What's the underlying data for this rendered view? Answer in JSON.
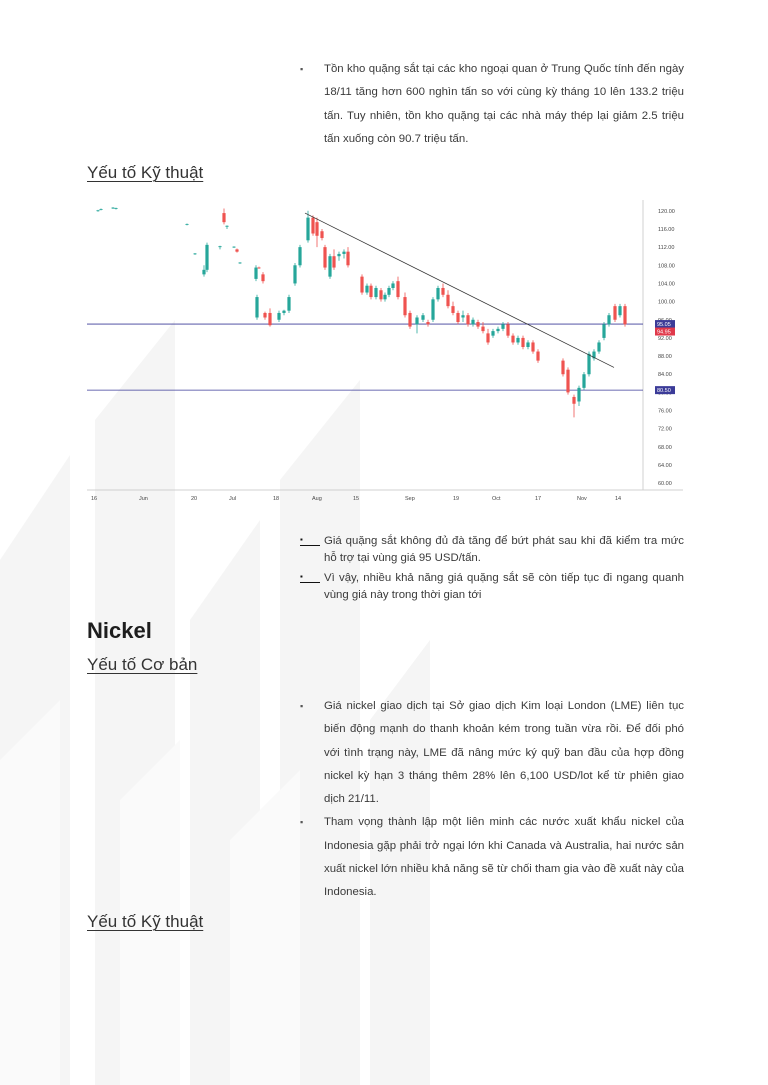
{
  "section1": {
    "bullets": [
      "Tồn kho quặng sắt tại các kho ngoại quan ở Trung Quốc tính đến ngày 18/11 tăng hơn 600 nghìn tấn so với cùng kỳ tháng 10 lên 133.2 triệu tấn. Tuy nhiên, tồn kho quặng tại các nhà máy thép lại giảm 2.5 triệu tấn xuống còn 90.7 triệu tấn."
    ],
    "technical_heading": "Yếu tố Kỹ thuật"
  },
  "chart_data": {
    "type": "candlestick",
    "x_tick_labels": [
      "16",
      "Jun",
      "20",
      "Jul",
      "18",
      "Aug",
      "15",
      "Sep",
      "19",
      "Oct",
      "17",
      "Nov",
      "14"
    ],
    "y_tick_labels": [
      "120.00",
      "116.00",
      "112.00",
      "108.00",
      "104.00",
      "100.00",
      "96.00",
      "92.00",
      "88.00",
      "84.00",
      "80.00",
      "76.00",
      "72.00",
      "68.00",
      "64.00",
      "60.00"
    ],
    "ylim": [
      58.5,
      121.5
    ],
    "horizontal_lines": [
      {
        "value": 95.05,
        "label": "95.05",
        "color": "#3b3b98"
      },
      {
        "value": 80.5,
        "label": "80.50",
        "color": "#3b3b98"
      }
    ],
    "current_price": {
      "value": 94.95,
      "label": "94.95",
      "color": "#e0394b"
    },
    "trendline": {
      "from_value": 119.5,
      "to_value": 85.5,
      "color": "#333333"
    },
    "colors": {
      "up": "#26a69a",
      "down": "#ef5350"
    },
    "candles": [
      {
        "o": 120.0,
        "h": 120.2,
        "l": 119.8,
        "c": 120.1
      },
      {
        "o": 120.3,
        "h": 120.5,
        "l": 120.1,
        "c": 120.4
      },
      {
        "o": 120.6,
        "h": 120.8,
        "l": 120.4,
        "c": 120.7
      },
      {
        "o": 120.5,
        "h": 120.7,
        "l": 120.3,
        "c": 120.6
      },
      {
        "o": 117.0,
        "h": 117.2,
        "l": 116.8,
        "c": 117.1
      },
      {
        "o": 110.5,
        "h": 110.7,
        "l": 110.3,
        "c": 110.6
      },
      {
        "o": 106.0,
        "h": 108.0,
        "l": 105.5,
        "c": 107.0
      },
      {
        "o": 107.0,
        "h": 113.0,
        "l": 106.5,
        "c": 112.5
      },
      {
        "o": 112.0,
        "h": 112.3,
        "l": 111.5,
        "c": 112.2
      },
      {
        "o": 116.5,
        "h": 116.8,
        "l": 116.0,
        "c": 116.7
      },
      {
        "o": 119.5,
        "h": 120.5,
        "l": 117.0,
        "c": 117.5
      },
      {
        "o": 112.0,
        "h": 112.2,
        "l": 111.8,
        "c": 112.1
      },
      {
        "o": 111.5,
        "h": 111.7,
        "l": 110.8,
        "c": 111.0
      },
      {
        "o": 108.5,
        "h": 108.7,
        "l": 108.3,
        "c": 108.6
      },
      {
        "o": 105.0,
        "h": 108.0,
        "l": 104.5,
        "c": 107.5
      },
      {
        "o": 107.5,
        "h": 107.7,
        "l": 107.2,
        "c": 107.4
      },
      {
        "o": 106.0,
        "h": 106.5,
        "l": 104.0,
        "c": 104.5
      },
      {
        "o": 96.5,
        "h": 101.5,
        "l": 96.0,
        "c": 101.0
      },
      {
        "o": 97.5,
        "h": 97.8,
        "l": 96.0,
        "c": 96.5
      },
      {
        "o": 97.5,
        "h": 98.5,
        "l": 94.5,
        "c": 94.8
      },
      {
        "o": 96.0,
        "h": 98.0,
        "l": 95.5,
        "c": 97.5
      },
      {
        "o": 97.5,
        "h": 98.2,
        "l": 97.0,
        "c": 98.0
      },
      {
        "o": 98.0,
        "h": 101.5,
        "l": 97.5,
        "c": 101.0
      },
      {
        "o": 104.0,
        "h": 108.5,
        "l": 103.5,
        "c": 108.0
      },
      {
        "o": 108.0,
        "h": 112.5,
        "l": 107.5,
        "c": 112.0
      },
      {
        "o": 113.5,
        "h": 120.0,
        "l": 113.0,
        "c": 118.5
      },
      {
        "o": 118.5,
        "h": 119.0,
        "l": 114.5,
        "c": 115.0
      },
      {
        "o": 117.5,
        "h": 118.5,
        "l": 112.0,
        "c": 114.5
      },
      {
        "o": 115.5,
        "h": 116.0,
        "l": 113.5,
        "c": 114.0
      },
      {
        "o": 112.0,
        "h": 112.5,
        "l": 107.0,
        "c": 107.5
      },
      {
        "o": 105.5,
        "h": 110.5,
        "l": 105.0,
        "c": 110.0
      },
      {
        "o": 110.0,
        "h": 111.5,
        "l": 107.0,
        "c": 107.5
      },
      {
        "o": 110.0,
        "h": 111.0,
        "l": 109.0,
        "c": 110.5
      },
      {
        "o": 110.5,
        "h": 111.5,
        "l": 109.5,
        "c": 111.0
      },
      {
        "o": 111.0,
        "h": 112.0,
        "l": 107.5,
        "c": 108.0
      },
      {
        "o": 105.5,
        "h": 106.0,
        "l": 101.5,
        "c": 102.0
      },
      {
        "o": 102.0,
        "h": 104.0,
        "l": 101.5,
        "c": 103.5
      },
      {
        "o": 103.5,
        "h": 104.0,
        "l": 100.5,
        "c": 101.0
      },
      {
        "o": 101.0,
        "h": 103.5,
        "l": 100.5,
        "c": 103.0
      },
      {
        "o": 102.5,
        "h": 103.0,
        "l": 100.0,
        "c": 100.5
      },
      {
        "o": 100.5,
        "h": 102.0,
        "l": 100.0,
        "c": 101.5
      },
      {
        "o": 101.5,
        "h": 103.5,
        "l": 101.0,
        "c": 103.0
      },
      {
        "o": 103.0,
        "h": 104.5,
        "l": 102.5,
        "c": 104.0
      },
      {
        "o": 104.5,
        "h": 105.5,
        "l": 100.5,
        "c": 101.0
      },
      {
        "o": 101.0,
        "h": 102.0,
        "l": 96.5,
        "c": 97.0
      },
      {
        "o": 97.5,
        "h": 98.0,
        "l": 94.0,
        "c": 94.5
      },
      {
        "o": 95.0,
        "h": 97.0,
        "l": 93.0,
        "c": 96.5
      },
      {
        "o": 96.0,
        "h": 97.5,
        "l": 95.5,
        "c": 97.0
      },
      {
        "o": 95.5,
        "h": 96.0,
        "l": 94.5,
        "c": 95.0
      },
      {
        "o": 96.0,
        "h": 101.0,
        "l": 95.5,
        "c": 100.5
      },
      {
        "o": 100.5,
        "h": 103.5,
        "l": 100.0,
        "c": 103.0
      },
      {
        "o": 103.0,
        "h": 104.0,
        "l": 101.0,
        "c": 101.5
      },
      {
        "o": 101.5,
        "h": 102.5,
        "l": 98.5,
        "c": 99.0
      },
      {
        "o": 99.0,
        "h": 100.0,
        "l": 97.0,
        "c": 97.5
      },
      {
        "o": 97.5,
        "h": 98.0,
        "l": 95.0,
        "c": 95.5
      },
      {
        "o": 96.5,
        "h": 98.0,
        "l": 95.5,
        "c": 97.0
      },
      {
        "o": 97.0,
        "h": 97.5,
        "l": 94.5,
        "c": 95.0
      },
      {
        "o": 95.0,
        "h": 96.5,
        "l": 94.5,
        "c": 96.0
      },
      {
        "o": 95.5,
        "h": 96.0,
        "l": 94.0,
        "c": 94.5
      },
      {
        "o": 94.5,
        "h": 95.5,
        "l": 93.0,
        "c": 93.5
      },
      {
        "o": 93.0,
        "h": 94.0,
        "l": 90.5,
        "c": 91.0
      },
      {
        "o": 92.5,
        "h": 94.0,
        "l": 92.0,
        "c": 93.5
      },
      {
        "o": 93.5,
        "h": 94.5,
        "l": 93.0,
        "c": 94.0
      },
      {
        "o": 94.0,
        "h": 95.5,
        "l": 93.5,
        "c": 95.0
      },
      {
        "o": 95.0,
        "h": 95.5,
        "l": 92.0,
        "c": 92.5
      },
      {
        "o": 92.5,
        "h": 93.0,
        "l": 90.5,
        "c": 91.0
      },
      {
        "o": 91.0,
        "h": 92.5,
        "l": 90.5,
        "c": 92.0
      },
      {
        "o": 92.0,
        "h": 92.5,
        "l": 89.5,
        "c": 90.0
      },
      {
        "o": 90.0,
        "h": 91.5,
        "l": 89.5,
        "c": 91.0
      },
      {
        "o": 91.0,
        "h": 91.5,
        "l": 88.5,
        "c": 89.0
      },
      {
        "o": 89.0,
        "h": 89.5,
        "l": 86.5,
        "c": 87.0
      },
      {
        "o": 87.0,
        "h": 87.5,
        "l": 83.5,
        "c": 84.0
      },
      {
        "o": 85.0,
        "h": 85.5,
        "l": 79.5,
        "c": 80.0
      },
      {
        "o": 79.0,
        "h": 79.5,
        "l": 74.5,
        "c": 77.5
      },
      {
        "o": 78.0,
        "h": 81.5,
        "l": 77.0,
        "c": 81.0
      },
      {
        "o": 81.0,
        "h": 84.5,
        "l": 80.5,
        "c": 84.0
      },
      {
        "o": 84.0,
        "h": 89.0,
        "l": 83.5,
        "c": 88.5
      },
      {
        "o": 87.5,
        "h": 89.5,
        "l": 87.0,
        "c": 89.0
      },
      {
        "o": 89.0,
        "h": 91.5,
        "l": 88.5,
        "c": 91.0
      },
      {
        "o": 92.0,
        "h": 95.5,
        "l": 91.5,
        "c": 95.0
      },
      {
        "o": 95.0,
        "h": 97.5,
        "l": 94.5,
        "c": 97.0
      },
      {
        "o": 99.0,
        "h": 99.5,
        "l": 95.5,
        "c": 96.0
      },
      {
        "o": 97.0,
        "h": 99.5,
        "l": 96.5,
        "c": 99.0
      },
      {
        "o": 99.0,
        "h": 99.5,
        "l": 94.5,
        "c": 95.0
      }
    ]
  },
  "section2": {
    "bullets": [
      "Giá quặng sắt không đủ đà tăng để bứt phát sau khi đã kiểm tra mức hỗ trợ tại vùng giá 95 USD/tấn.",
      "Vì vậy, nhiều khả năng giá quặng sắt sẽ còn tiếp tục đi ngang quanh vùng giá này trong thời gian tới"
    ]
  },
  "nickel": {
    "title": "Nickel",
    "fundamental_heading": "Yếu tố Cơ bản",
    "bullets": [
      "Giá nickel giao dịch tại Sở giao dịch Kim loại London (LME) liên tục biến động mạnh do thanh khoản kém trong tuần vừa rồi. Để đối phó với tình trạng này, LME đã nâng mức ký quỹ ban đầu của hợp đồng nickel kỳ hạn 3 tháng thêm 28% lên 6,100 USD/lot kể từ phiên giao dịch 21/11.",
      "Tham vọng thành lập một liên minh các nước xuất khẩu nickel của Indonesia gặp phải trở ngại lớn khi Canada và Australia, hai nước sản xuất nickel lớn nhiều khả năng sẽ từ chối tham gia vào đề xuất này của Indonesia."
    ],
    "technical_heading": "Yếu tố Kỹ thuật"
  }
}
